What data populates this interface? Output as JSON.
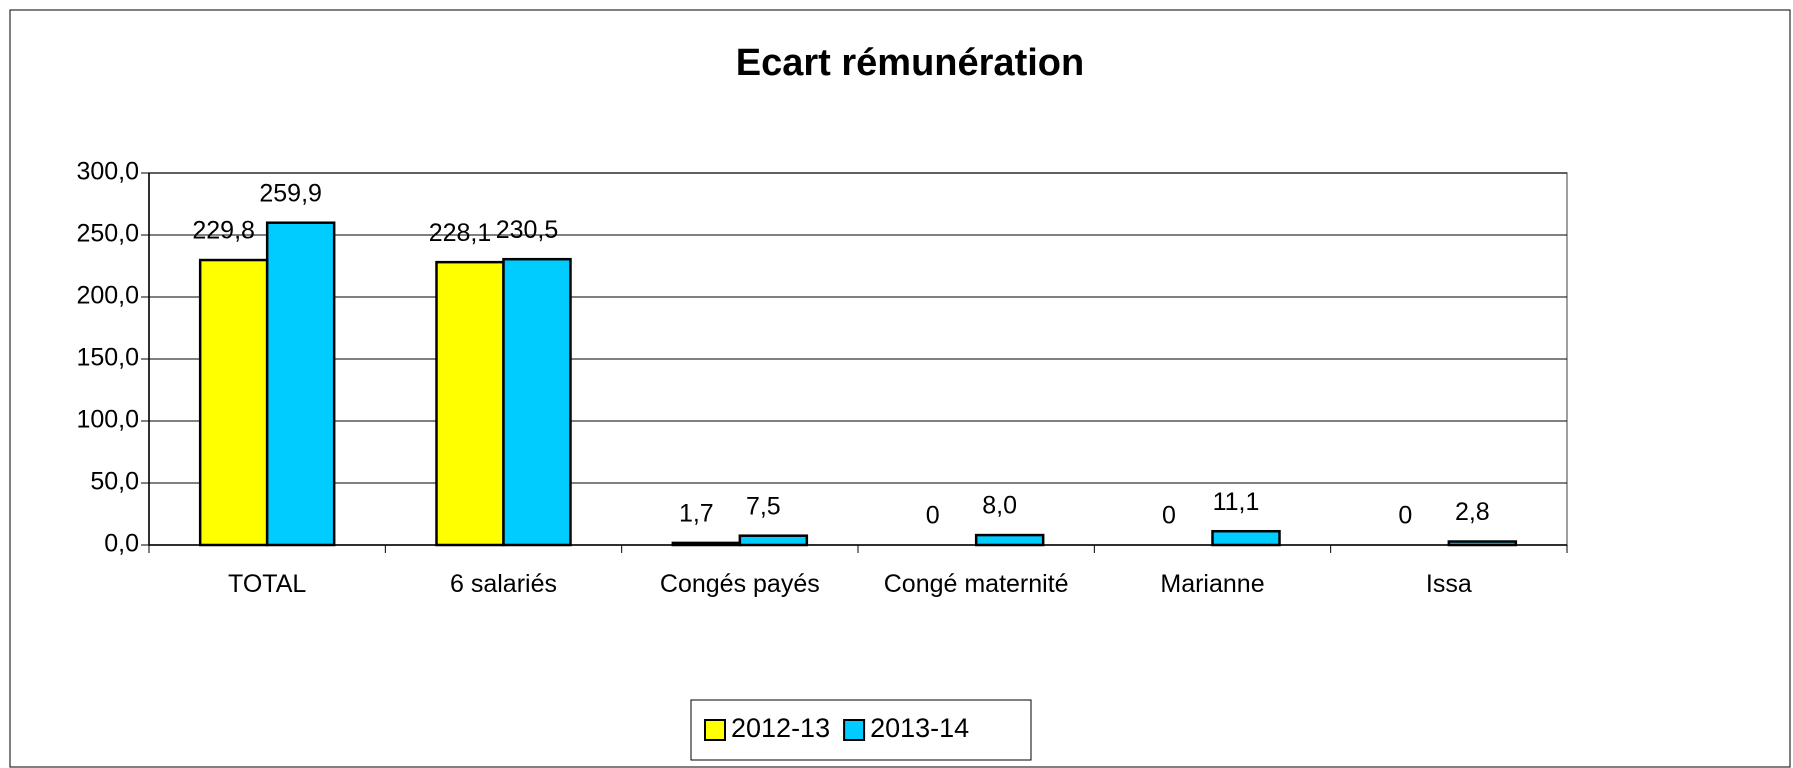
{
  "chart_data": {
    "type": "bar",
    "title": "Ecart rémunération",
    "categories": [
      "TOTAL",
      "6 salariés",
      "Congés payés",
      "Congé maternité",
      "Marianne",
      "Issa"
    ],
    "series": [
      {
        "name": "2012-13",
        "color": "#ffff00",
        "values": [
          229.8,
          228.1,
          1.7,
          0,
          0,
          0
        ],
        "value_labels": [
          "229,8",
          "228,1",
          "1,7",
          "0",
          "0",
          "0"
        ]
      },
      {
        "name": "2013-14",
        "color": "#00ccff",
        "values": [
          259.9,
          230.5,
          7.5,
          8.0,
          11.1,
          2.8
        ],
        "value_labels": [
          "259,9",
          "230,5",
          "7,5",
          "8,0",
          "11,1",
          "2,8"
        ]
      }
    ],
    "ylim": [
      0,
      300
    ],
    "yticks": [
      {
        "value": 0,
        "label": "0,0"
      },
      {
        "value": 50,
        "label": "50,0"
      },
      {
        "value": 100,
        "label": "100,0"
      },
      {
        "value": 150,
        "label": "150,0"
      },
      {
        "value": 200,
        "label": "200,0"
      },
      {
        "value": 250,
        "label": "250,0"
      },
      {
        "value": 300,
        "label": "300,0"
      }
    ],
    "grid": true,
    "legend": "bottom"
  }
}
